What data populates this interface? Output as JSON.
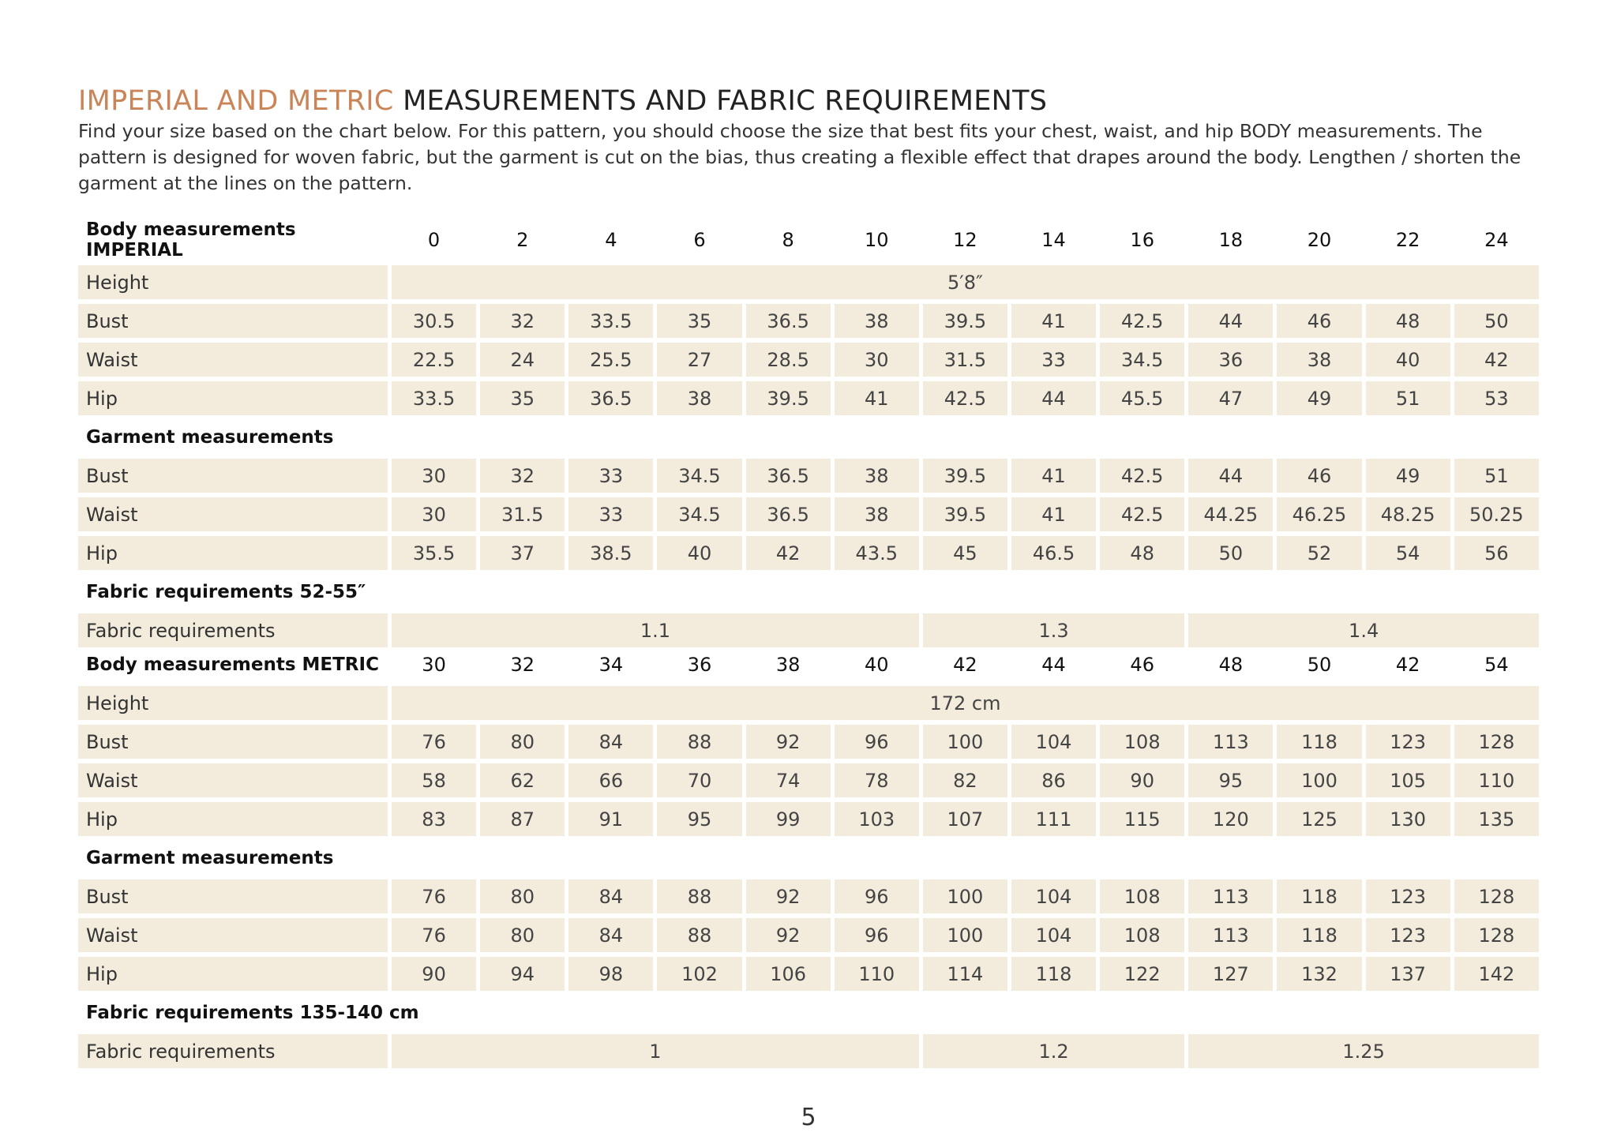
{
  "header": {
    "title_accent": "IMPERIAL AND METRIC",
    "title": "MEASUREMENTS AND FABRIC REQUIREMENTS",
    "intro": "Find your size based on the chart below. For this pattern, you should choose the size that best fits your chest, waist, and hip BODY measurements. The pattern is designed for woven fabric, but the garment is cut on the bias, thus creating a flexible effect that drapes around the body. Lengthen / shorten the garment at the lines on the pattern."
  },
  "tables": [
    {
      "heading": "Body measurements IMPERIAL",
      "sizes": [
        0,
        2,
        4,
        6,
        8,
        10,
        12,
        14,
        16,
        18,
        20,
        22,
        24
      ],
      "height": {
        "label": "Height",
        "value": "5′8″"
      },
      "body_rows": [
        {
          "label": "Bust",
          "values": [
            30.5,
            32,
            33.5,
            35,
            36.5,
            38,
            39.5,
            41,
            42.5,
            44,
            46,
            48,
            50
          ]
        },
        {
          "label": "Waist",
          "values": [
            22.5,
            24,
            25.5,
            27,
            28.5,
            30,
            31.5,
            33,
            34.5,
            36,
            38,
            40,
            42
          ]
        },
        {
          "label": "Hip",
          "values": [
            33.5,
            35,
            36.5,
            38,
            39.5,
            41,
            42.5,
            44,
            45.5,
            47,
            49,
            51,
            53
          ]
        }
      ],
      "garment_heading": "Garment measurements",
      "garment_rows": [
        {
          "label": "Bust",
          "values": [
            30,
            32,
            33,
            34.5,
            36.5,
            38,
            39.5,
            41,
            42.5,
            44,
            46,
            49,
            51
          ]
        },
        {
          "label": "Waist",
          "values": [
            30,
            31.5,
            33,
            34.5,
            36.5,
            38,
            39.5,
            41,
            42.5,
            44.25,
            46.25,
            48.25,
            50.25
          ]
        },
        {
          "label": "Hip",
          "values": [
            35.5,
            37,
            38.5,
            40,
            42,
            43.5,
            45,
            46.5,
            48,
            50,
            52,
            54,
            56
          ]
        }
      ],
      "fabric_heading": "Fabric requirements 52-55″",
      "fabric": {
        "label": "Fabric requirements",
        "values": [
          1.1,
          1.3,
          1.4
        ]
      }
    },
    {
      "heading": "Body measurements METRIC",
      "sizes": [
        30,
        32,
        34,
        36,
        38,
        40,
        42,
        44,
        46,
        48,
        50,
        42,
        54
      ],
      "height": {
        "label": "Height",
        "value": "172 cm"
      },
      "body_rows": [
        {
          "label": "Bust",
          "values": [
            76,
            80,
            84,
            88,
            92,
            96,
            100,
            104,
            108,
            113,
            118,
            123,
            128
          ]
        },
        {
          "label": "Waist",
          "values": [
            58,
            62,
            66,
            70,
            74,
            78,
            82,
            86,
            90,
            95,
            100,
            105,
            110
          ]
        },
        {
          "label": "Hip",
          "values": [
            83,
            87,
            91,
            95,
            99,
            103,
            107,
            111,
            115,
            120,
            125,
            130,
            135
          ]
        }
      ],
      "garment_heading": "Garment measurements",
      "garment_rows": [
        {
          "label": "Bust",
          "values": [
            76,
            80,
            84,
            88,
            92,
            96,
            100,
            104,
            108,
            113,
            118,
            123,
            128
          ]
        },
        {
          "label": "Waist",
          "values": [
            76,
            80,
            84,
            88,
            92,
            96,
            100,
            104,
            108,
            113,
            118,
            123,
            128
          ]
        },
        {
          "label": "Hip",
          "values": [
            90,
            94,
            98,
            102,
            106,
            110,
            114,
            118,
            122,
            127,
            132,
            137,
            142
          ]
        }
      ],
      "fabric_heading": "Fabric requirements 135-140 cm",
      "fabric": {
        "label": "Fabric requirements",
        "values": [
          1,
          1.2,
          1.25
        ]
      }
    }
  ],
  "page_number": 5
}
